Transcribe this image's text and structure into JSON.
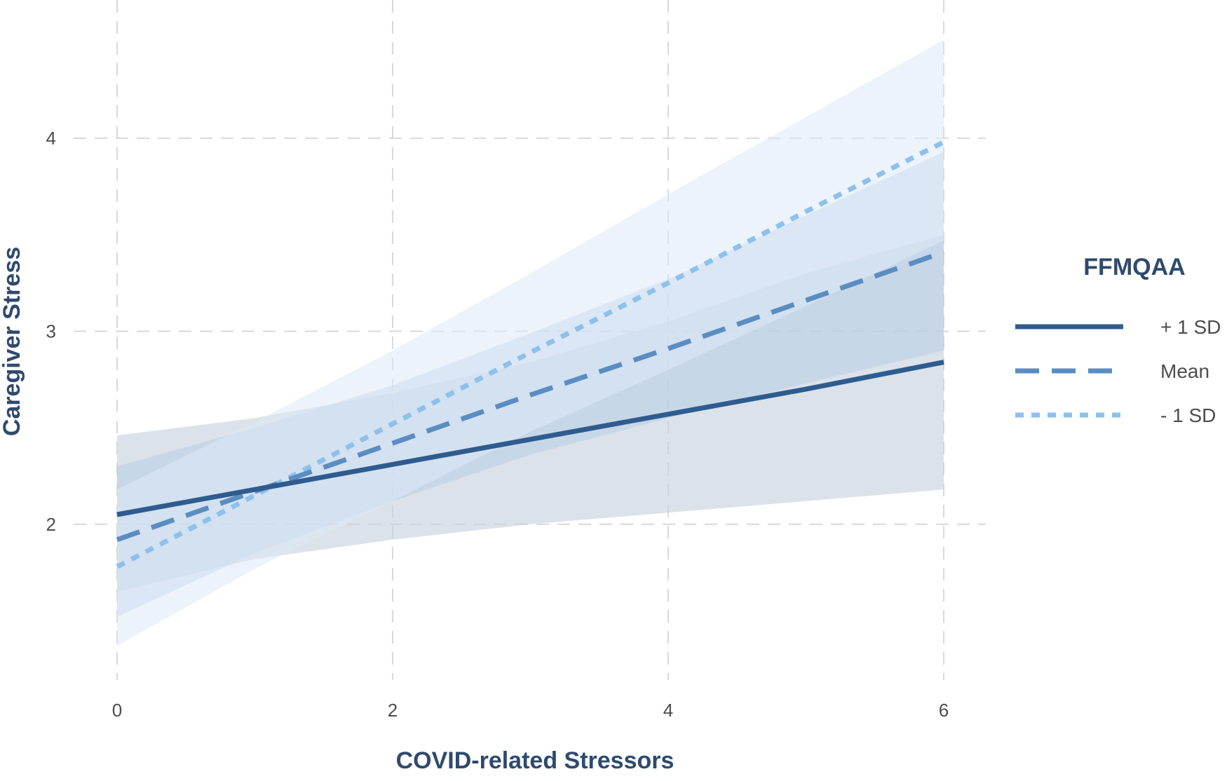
{
  "chart_data": {
    "type": "line",
    "title": "",
    "xlabel": "COVID-related Stressors",
    "ylabel": "Caregiver Stress",
    "xlim": [
      0,
      6
    ],
    "ylim": [
      1.2,
      4.6
    ],
    "x_ticks": [
      0,
      2,
      4,
      6
    ],
    "y_ticks": [
      2,
      3,
      4
    ],
    "x_tick_labels": [
      "0",
      "2",
      "4",
      "6"
    ],
    "y_tick_labels": [
      "2",
      "3",
      "4"
    ],
    "grid": true,
    "legend": {
      "title": "FFMQAA",
      "placement": "right"
    },
    "series": [
      {
        "name": "+ 1 SD",
        "line_style": "solid",
        "color": "#2e5c8f",
        "band_color": "#c7d0dc",
        "x": [
          0,
          1,
          2,
          3,
          4,
          5,
          6
        ],
        "y": [
          2.05,
          2.18,
          2.31,
          2.44,
          2.57,
          2.7,
          2.84
        ],
        "ci_lower": [
          1.65,
          1.82,
          1.92,
          2.0,
          2.06,
          2.12,
          2.18
        ],
        "ci_upper": [
          2.46,
          2.55,
          2.68,
          2.84,
          3.05,
          3.3,
          3.5
        ]
      },
      {
        "name": "Mean",
        "line_style": "dashed",
        "color": "#5a8dc2",
        "band_color": "#b3cbe6",
        "x": [
          0,
          1,
          2,
          3,
          4,
          5,
          6
        ],
        "y": [
          1.92,
          2.17,
          2.42,
          2.67,
          2.91,
          3.16,
          3.41
        ],
        "ci_lower": [
          1.52,
          1.85,
          2.12,
          2.36,
          2.55,
          2.73,
          2.9
        ],
        "ci_upper": [
          2.3,
          2.5,
          2.72,
          2.99,
          3.27,
          3.6,
          3.93
        ]
      },
      {
        "name": "- 1 SD",
        "line_style": "dotted",
        "color": "#8ec0ec",
        "band_color": "#dce9f8",
        "x": [
          0,
          1,
          2,
          3,
          4,
          5,
          6
        ],
        "y": [
          1.78,
          2.15,
          2.52,
          2.89,
          3.25,
          3.62,
          3.98
        ],
        "ci_lower": [
          1.37,
          1.77,
          2.12,
          2.48,
          2.8,
          3.13,
          3.47
        ],
        "ci_upper": [
          2.18,
          2.53,
          2.9,
          3.3,
          3.71,
          4.11,
          4.51
        ]
      }
    ]
  }
}
